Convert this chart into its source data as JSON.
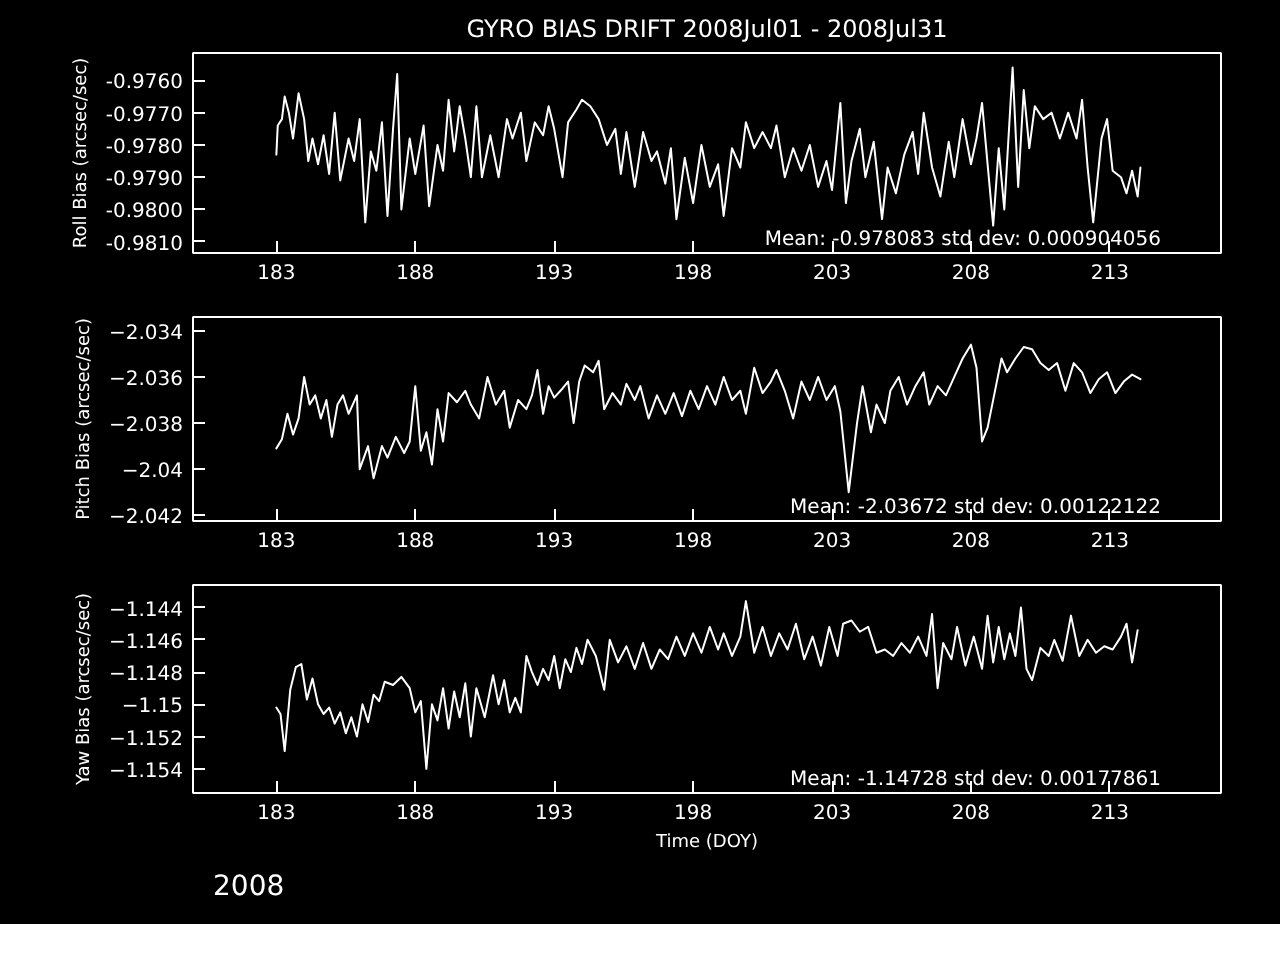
{
  "chart_data": [
    {
      "type": "line",
      "title": "GYRO BIAS DRIFT 2008Jul01 - 2008Jul31",
      "ylabel": "Roll Bias (arcsec/sec)",
      "grid": false,
      "marker": "none",
      "line_style": "solid",
      "xlim": [
        180,
        217
      ],
      "xticks": [
        183,
        188,
        193,
        198,
        203,
        208,
        213
      ],
      "ylim": [
        -0.98135,
        -0.97515
      ],
      "yticks": [
        {
          "value": -0.976,
          "label": "-0.9760"
        },
        {
          "value": -0.977,
          "label": "-0.9770"
        },
        {
          "value": -0.978,
          "label": "-0.9780"
        },
        {
          "value": -0.979,
          "label": "-0.9790"
        },
        {
          "value": -0.98,
          "label": "-0.9800"
        },
        {
          "value": -0.981,
          "label": "-0.9810"
        }
      ],
      "annotations": [
        "Mean: -0.978083 std dev: 0.000904056"
      ],
      "series": [
        {
          "color": "#ffffff",
          "x": [
            183.0,
            183.05,
            183.2,
            183.3,
            183.45,
            183.6,
            183.8,
            184.0,
            184.15,
            184.3,
            184.5,
            184.7,
            184.9,
            185.1,
            185.3,
            185.6,
            185.8,
            186.0,
            186.2,
            186.4,
            186.6,
            186.8,
            187.0,
            187.2,
            187.35,
            187.5,
            187.8,
            188.0,
            188.3,
            188.5,
            188.8,
            189.0,
            189.2,
            189.4,
            189.6,
            189.8,
            190.0,
            190.2,
            190.4,
            190.7,
            191.0,
            191.3,
            191.5,
            191.8,
            192.0,
            192.3,
            192.6,
            192.8,
            193.0,
            193.3,
            193.5,
            193.8,
            194.0,
            194.3,
            194.6,
            194.9,
            195.2,
            195.4,
            195.6,
            195.9,
            196.2,
            196.5,
            196.7,
            197.0,
            197.2,
            197.4,
            197.7,
            198.0,
            198.3,
            198.6,
            198.9,
            199.1,
            199.4,
            199.7,
            199.9,
            200.2,
            200.5,
            200.8,
            201.0,
            201.3,
            201.6,
            201.9,
            202.2,
            202.5,
            202.8,
            203.0,
            203.3,
            203.5,
            203.7,
            204.0,
            204.2,
            204.5,
            204.8,
            205.0,
            205.3,
            205.6,
            205.9,
            206.1,
            206.3,
            206.6,
            206.9,
            207.2,
            207.4,
            207.7,
            208.0,
            208.2,
            208.4,
            208.6,
            208.8,
            209.0,
            209.2,
            209.5,
            209.7,
            209.9,
            210.1,
            210.3,
            210.6,
            210.9,
            211.2,
            211.5,
            211.8,
            212.0,
            212.2,
            212.4,
            212.7,
            212.9,
            213.1,
            213.4,
            213.6,
            213.8,
            214.0,
            214.1
          ],
          "values": [
            -0.9783,
            -0.9774,
            -0.9772,
            -0.9765,
            -0.977,
            -0.9778,
            -0.9764,
            -0.9772,
            -0.9785,
            -0.9778,
            -0.9786,
            -0.9777,
            -0.9789,
            -0.977,
            -0.9791,
            -0.9778,
            -0.9785,
            -0.9772,
            -0.9804,
            -0.9782,
            -0.9788,
            -0.9773,
            -0.9802,
            -0.9775,
            -0.9758,
            -0.98,
            -0.9778,
            -0.9789,
            -0.9774,
            -0.9799,
            -0.978,
            -0.9788,
            -0.9766,
            -0.9782,
            -0.9768,
            -0.9778,
            -0.979,
            -0.9768,
            -0.979,
            -0.9777,
            -0.979,
            -0.9772,
            -0.9778,
            -0.977,
            -0.9785,
            -0.9773,
            -0.9777,
            -0.9768,
            -0.9775,
            -0.979,
            -0.9773,
            -0.9769,
            -0.9766,
            -0.9768,
            -0.9772,
            -0.978,
            -0.9775,
            -0.9789,
            -0.9776,
            -0.9793,
            -0.9776,
            -0.9785,
            -0.9782,
            -0.9792,
            -0.9781,
            -0.9803,
            -0.9784,
            -0.9798,
            -0.978,
            -0.9793,
            -0.9786,
            -0.9802,
            -0.9781,
            -0.9787,
            -0.9773,
            -0.9781,
            -0.9776,
            -0.9781,
            -0.9774,
            -0.979,
            -0.9781,
            -0.9788,
            -0.978,
            -0.9793,
            -0.9785,
            -0.9794,
            -0.9767,
            -0.9798,
            -0.9785,
            -0.9775,
            -0.979,
            -0.9779,
            -0.9803,
            -0.9787,
            -0.9795,
            -0.9783,
            -0.9776,
            -0.9789,
            -0.977,
            -0.9787,
            -0.9796,
            -0.9779,
            -0.979,
            -0.9772,
            -0.9786,
            -0.9778,
            -0.9767,
            -0.9786,
            -0.9805,
            -0.9781,
            -0.98,
            -0.9756,
            -0.9793,
            -0.9763,
            -0.9781,
            -0.9768,
            -0.9772,
            -0.977,
            -0.9778,
            -0.977,
            -0.9778,
            -0.9766,
            -0.9787,
            -0.9804,
            -0.9778,
            -0.9772,
            -0.9788,
            -0.979,
            -0.9795,
            -0.9788,
            -0.9796,
            -0.9787
          ]
        }
      ]
    },
    {
      "type": "line",
      "ylabel": "Pitch Bias (arcsec/sec)",
      "grid": false,
      "marker": "none",
      "line_style": "solid",
      "xlim": [
        180,
        217
      ],
      "xticks": [
        183,
        188,
        193,
        198,
        203,
        208,
        213
      ],
      "ylim": [
        -2.04225,
        -2.0334
      ],
      "yticks": [
        -2.034,
        -2.036,
        -2.038,
        -2.04,
        -2.042
      ],
      "annotations": [
        "Mean: -2.03672 std dev: 0.00122122"
      ],
      "series": [
        {
          "color": "#ffffff",
          "x": [
            183.0,
            183.2,
            183.4,
            183.6,
            183.8,
            184.0,
            184.2,
            184.4,
            184.6,
            184.8,
            185.0,
            185.2,
            185.4,
            185.6,
            185.9,
            186.0,
            186.3,
            186.5,
            186.8,
            187.0,
            187.3,
            187.6,
            187.8,
            188.0,
            188.2,
            188.4,
            188.6,
            188.8,
            189.0,
            189.2,
            189.5,
            189.8,
            190.0,
            190.3,
            190.6,
            190.9,
            191.2,
            191.4,
            191.7,
            192.0,
            192.2,
            192.4,
            192.6,
            192.8,
            193.0,
            193.3,
            193.5,
            193.7,
            193.9,
            194.1,
            194.4,
            194.6,
            194.8,
            195.1,
            195.4,
            195.6,
            195.9,
            196.1,
            196.4,
            196.7,
            197.0,
            197.3,
            197.6,
            197.9,
            198.2,
            198.5,
            198.8,
            199.1,
            199.4,
            199.7,
            199.9,
            200.2,
            200.5,
            200.8,
            201.0,
            201.3,
            201.6,
            201.9,
            202.2,
            202.5,
            202.8,
            203.1,
            203.3,
            203.6,
            203.9,
            204.1,
            204.4,
            204.6,
            204.9,
            205.1,
            205.4,
            205.7,
            206.0,
            206.3,
            206.5,
            206.8,
            207.1,
            207.4,
            207.7,
            208.0,
            208.2,
            208.4,
            208.6,
            208.9,
            209.1,
            209.3,
            209.6,
            209.9,
            210.2,
            210.5,
            210.8,
            211.1,
            211.4,
            211.7,
            212.0,
            212.3,
            212.6,
            212.9,
            213.2,
            213.5,
            213.8,
            214.1
          ],
          "values": [
            -2.0391,
            -2.0387,
            -2.0376,
            -2.0385,
            -2.0378,
            -2.036,
            -2.0372,
            -2.0368,
            -2.0378,
            -2.037,
            -2.0386,
            -2.0372,
            -2.0368,
            -2.0376,
            -2.0368,
            -2.04,
            -2.039,
            -2.0404,
            -2.039,
            -2.0395,
            -2.0386,
            -2.0393,
            -2.0388,
            -2.0364,
            -2.0392,
            -2.0384,
            -2.0398,
            -2.0374,
            -2.0388,
            -2.0367,
            -2.0371,
            -2.0366,
            -2.0372,
            -2.0378,
            -2.036,
            -2.0372,
            -2.0366,
            -2.0382,
            -2.037,
            -2.0374,
            -2.0368,
            -2.0357,
            -2.0376,
            -2.0364,
            -2.0369,
            -2.0365,
            -2.0362,
            -2.038,
            -2.0362,
            -2.0355,
            -2.0358,
            -2.0353,
            -2.0374,
            -2.0367,
            -2.0372,
            -2.0363,
            -2.037,
            -2.0364,
            -2.0378,
            -2.0368,
            -2.0376,
            -2.0367,
            -2.0377,
            -2.0366,
            -2.0374,
            -2.0364,
            -2.0372,
            -2.036,
            -2.037,
            -2.0366,
            -2.0376,
            -2.0356,
            -2.0367,
            -2.0362,
            -2.0357,
            -2.0366,
            -2.0378,
            -2.0362,
            -2.037,
            -2.036,
            -2.037,
            -2.0364,
            -2.0375,
            -2.041,
            -2.038,
            -2.0364,
            -2.0384,
            -2.0372,
            -2.038,
            -2.0366,
            -2.036,
            -2.0372,
            -2.0364,
            -2.0358,
            -2.0372,
            -2.0364,
            -2.0368,
            -2.036,
            -2.0352,
            -2.0346,
            -2.0356,
            -2.0388,
            -2.0382,
            -2.0364,
            -2.0352,
            -2.0358,
            -2.0352,
            -2.0347,
            -2.0348,
            -2.0354,
            -2.0357,
            -2.0354,
            -2.0366,
            -2.0354,
            -2.0358,
            -2.0367,
            -2.0361,
            -2.0358,
            -2.0367,
            -2.0362,
            -2.0359,
            -2.0361
          ]
        }
      ]
    },
    {
      "type": "line",
      "xlabel": "Time (DOY)",
      "ylabel": "Yaw Bias (arcsec/sec)",
      "grid": false,
      "marker": "none",
      "line_style": "solid",
      "xlim": [
        180,
        217
      ],
      "xticks": [
        183,
        188,
        193,
        198,
        203,
        208,
        213
      ],
      "ylim": [
        -1.1555,
        -1.1426
      ],
      "yticks": [
        -1.144,
        -1.146,
        -1.148,
        -1.15,
        -1.152,
        -1.154
      ],
      "annotations": [
        "Mean: -1.14728 std dev: 0.00177861",
        "2008"
      ],
      "series": [
        {
          "color": "#ffffff",
          "x": [
            183.0,
            183.15,
            183.3,
            183.5,
            183.7,
            183.9,
            184.1,
            184.3,
            184.5,
            184.7,
            184.9,
            185.1,
            185.3,
            185.5,
            185.7,
            185.9,
            186.1,
            186.3,
            186.5,
            186.7,
            186.9,
            187.2,
            187.5,
            187.8,
            188.0,
            188.2,
            188.4,
            188.6,
            188.8,
            189.0,
            189.2,
            189.4,
            189.6,
            189.8,
            190.0,
            190.2,
            190.5,
            190.8,
            191.0,
            191.2,
            191.4,
            191.6,
            191.8,
            192.0,
            192.2,
            192.4,
            192.6,
            192.8,
            193.0,
            193.2,
            193.4,
            193.6,
            193.8,
            194.0,
            194.2,
            194.5,
            194.8,
            195.0,
            195.3,
            195.6,
            195.9,
            196.2,
            196.5,
            196.8,
            197.1,
            197.4,
            197.7,
            198.0,
            198.3,
            198.6,
            198.9,
            199.1,
            199.4,
            199.7,
            199.9,
            200.2,
            200.5,
            200.8,
            201.1,
            201.4,
            201.7,
            202.0,
            202.3,
            202.6,
            202.9,
            203.2,
            203.4,
            203.7,
            204.0,
            204.3,
            204.6,
            204.9,
            205.2,
            205.5,
            205.8,
            206.1,
            206.4,
            206.6,
            206.8,
            207.0,
            207.3,
            207.5,
            207.8,
            208.1,
            208.4,
            208.6,
            208.8,
            209.0,
            209.2,
            209.4,
            209.6,
            209.8,
            210.0,
            210.2,
            210.5,
            210.8,
            211.0,
            211.3,
            211.6,
            211.9,
            212.2,
            212.5,
            212.8,
            213.1,
            213.4,
            213.6,
            213.8,
            214.0
          ],
          "values": [
            -1.1502,
            -1.1506,
            -1.1529,
            -1.1491,
            -1.1477,
            -1.1475,
            -1.1497,
            -1.1484,
            -1.15,
            -1.1506,
            -1.1502,
            -1.1512,
            -1.1505,
            -1.1518,
            -1.1508,
            -1.152,
            -1.15,
            -1.1511,
            -1.1494,
            -1.1498,
            -1.1486,
            -1.1488,
            -1.1483,
            -1.149,
            -1.1505,
            -1.1498,
            -1.154,
            -1.15,
            -1.151,
            -1.149,
            -1.1515,
            -1.1492,
            -1.1508,
            -1.1487,
            -1.152,
            -1.149,
            -1.1508,
            -1.1482,
            -1.15,
            -1.1485,
            -1.1505,
            -1.1496,
            -1.1505,
            -1.147,
            -1.148,
            -1.1488,
            -1.1478,
            -1.1485,
            -1.147,
            -1.149,
            -1.1472,
            -1.148,
            -1.1465,
            -1.1475,
            -1.146,
            -1.147,
            -1.1491,
            -1.146,
            -1.1474,
            -1.1464,
            -1.1478,
            -1.1462,
            -1.1478,
            -1.1466,
            -1.1472,
            -1.1458,
            -1.147,
            -1.1456,
            -1.1468,
            -1.1452,
            -1.1466,
            -1.1456,
            -1.147,
            -1.1458,
            -1.1436,
            -1.1468,
            -1.1452,
            -1.147,
            -1.1456,
            -1.1466,
            -1.145,
            -1.1472,
            -1.1458,
            -1.1476,
            -1.1452,
            -1.147,
            -1.145,
            -1.1448,
            -1.1455,
            -1.1452,
            -1.1468,
            -1.1466,
            -1.147,
            -1.1462,
            -1.1468,
            -1.1458,
            -1.147,
            -1.1444,
            -1.149,
            -1.1462,
            -1.1472,
            -1.1452,
            -1.1476,
            -1.1458,
            -1.1478,
            -1.1445,
            -1.1474,
            -1.1452,
            -1.1472,
            -1.1456,
            -1.147,
            -1.144,
            -1.1478,
            -1.1485,
            -1.1465,
            -1.147,
            -1.146,
            -1.1473,
            -1.1445,
            -1.147,
            -1.146,
            -1.1468,
            -1.1464,
            -1.1466,
            -1.1458,
            -1.145,
            -1.1474,
            -1.1454
          ]
        }
      ]
    }
  ]
}
